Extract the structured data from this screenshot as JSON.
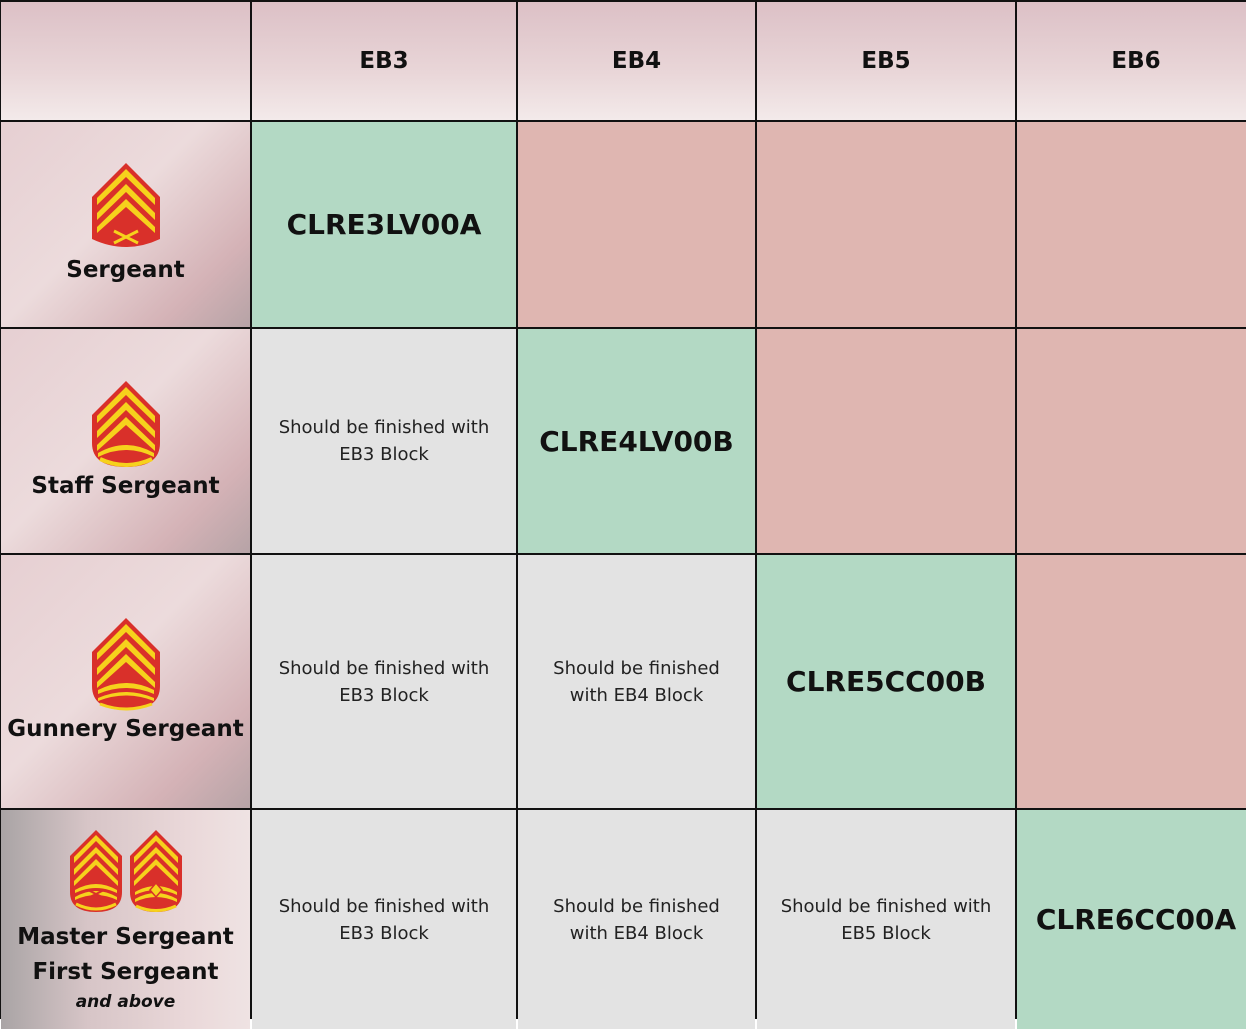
{
  "header": {
    "columns": [
      "EB3",
      "EB4",
      "EB5",
      "EB6"
    ]
  },
  "rows": [
    {
      "rank": "Sergeant",
      "cells": [
        "CLRE3LV00A",
        "",
        "",
        ""
      ]
    },
    {
      "rank": "Staff Sergeant",
      "cells": [
        "Should be finished with EB3 Block",
        "CLRE4LV00B",
        "",
        ""
      ]
    },
    {
      "rank": "Gunnery Sergeant",
      "cells": [
        "Should be finished with EB3 Block",
        "Should be finished with EB4 Block",
        "CLRE5CC00B",
        ""
      ]
    },
    {
      "rank_line1": "Master Sergeant",
      "rank_line2": "First Sergeant",
      "rank_sub": "and above",
      "cells": [
        "Should be finished with EB3 Block",
        "Should be finished with EB4 Block",
        "Should be finished with EB5 Block",
        "CLRE6CC00A"
      ]
    }
  ],
  "colors": {
    "current_block": "#b3d9c4",
    "not_applicable": "#dfb6b1",
    "completed": "#e3e3e3",
    "insignia_red": "#d9302a",
    "insignia_gold": "#f6d21c"
  },
  "icons": [
    "sergeant-chevron-icon",
    "staff-sergeant-chevron-icon",
    "gunnery-sergeant-chevron-icon",
    "master-sergeant-chevron-icon",
    "first-sergeant-chevron-icon"
  ]
}
